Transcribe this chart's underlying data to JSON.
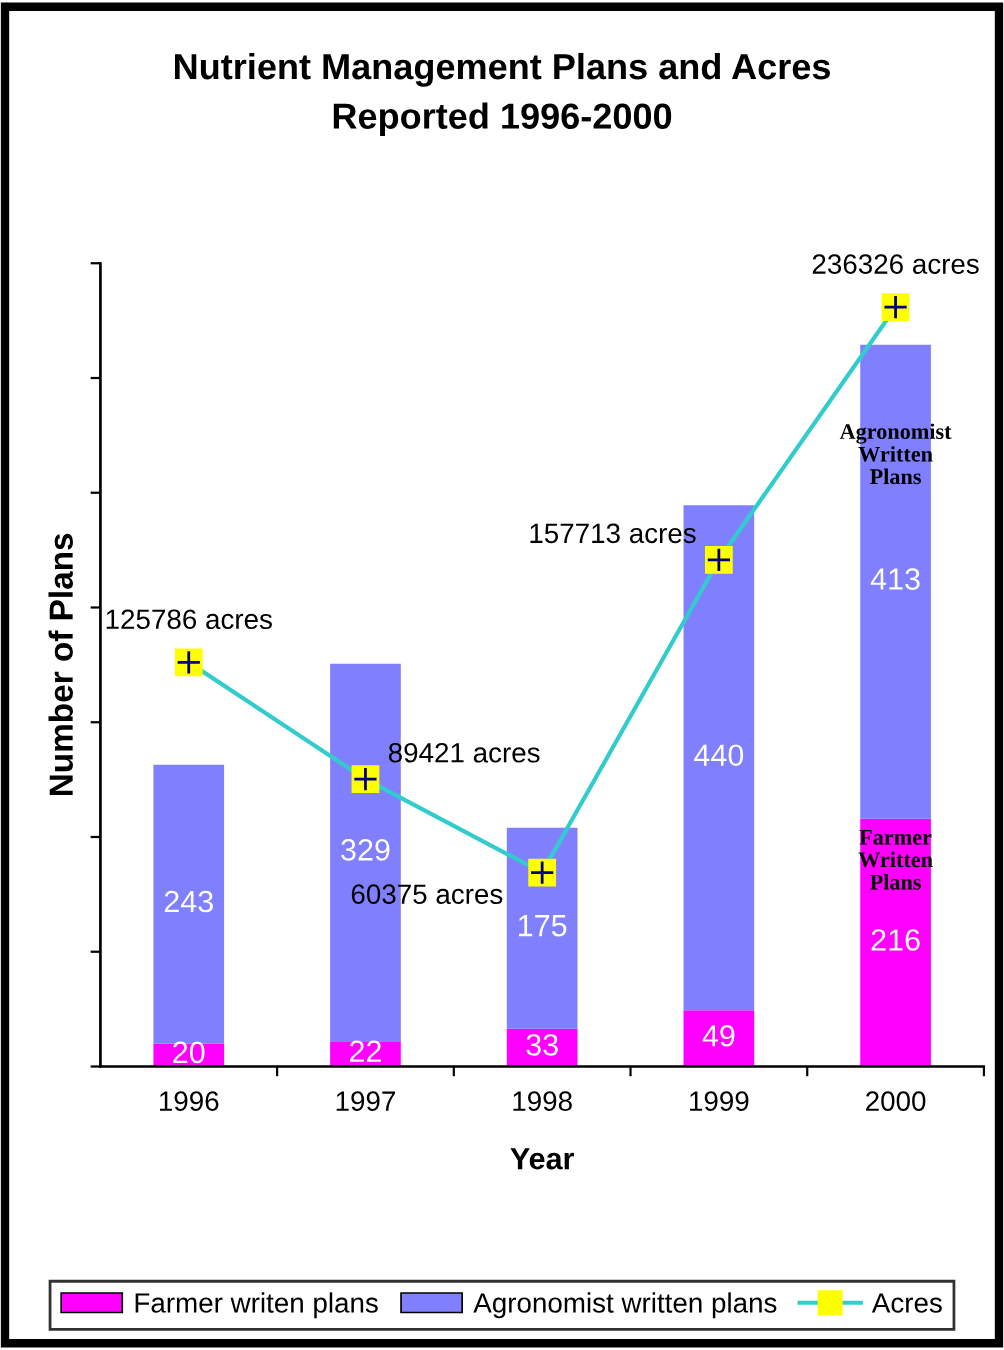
{
  "chart_data": {
    "type": "bar",
    "title": "Nutrient Management Plans and Acres\nReported 1996-2000",
    "xlabel": "Year",
    "ylabel": "Number of Plans",
    "categories": [
      "1996",
      "1997",
      "1998",
      "1999",
      "2000"
    ],
    "stacked": true,
    "data_labels": true,
    "series": [
      {
        "name": "Farmer writen plans",
        "color": "#ff00ff",
        "values": [
          20,
          22,
          33,
          49,
          216
        ]
      },
      {
        "name": "Agronomist written plans",
        "color": "#8080ff",
        "values": [
          243,
          329,
          175,
          440,
          413
        ]
      },
      {
        "name": "Acres",
        "type": "line",
        "axis": "y2",
        "color": "#33cccc",
        "marker": "square",
        "values": [
          125786,
          89421,
          60375,
          157713,
          236326
        ],
        "value_labels": [
          "125786 acres",
          "89421 acres",
          "60375 acres",
          "157713 acres",
          "236326 acres"
        ]
      }
    ],
    "ylim": [
      0,
      700
    ],
    "yticks": [
      {
        "value": 0,
        "label": null
      },
      {
        "value": 100,
        "label": null
      },
      {
        "value": 200,
        "label": null
      },
      {
        "value": 300,
        "label": null
      },
      {
        "value": 400,
        "label": null
      },
      {
        "value": 500,
        "label": null
      },
      {
        "value": 600,
        "label": null
      },
      {
        "value": 700,
        "label": null
      }
    ],
    "y2lim": [
      0,
      250000
    ],
    "tick_labels": "x",
    "grid": false,
    "legend": "bottom",
    "annotations": [
      "Agronomist\nWritten\nPlans",
      "Farmer\nWritten\nPlans"
    ]
  }
}
